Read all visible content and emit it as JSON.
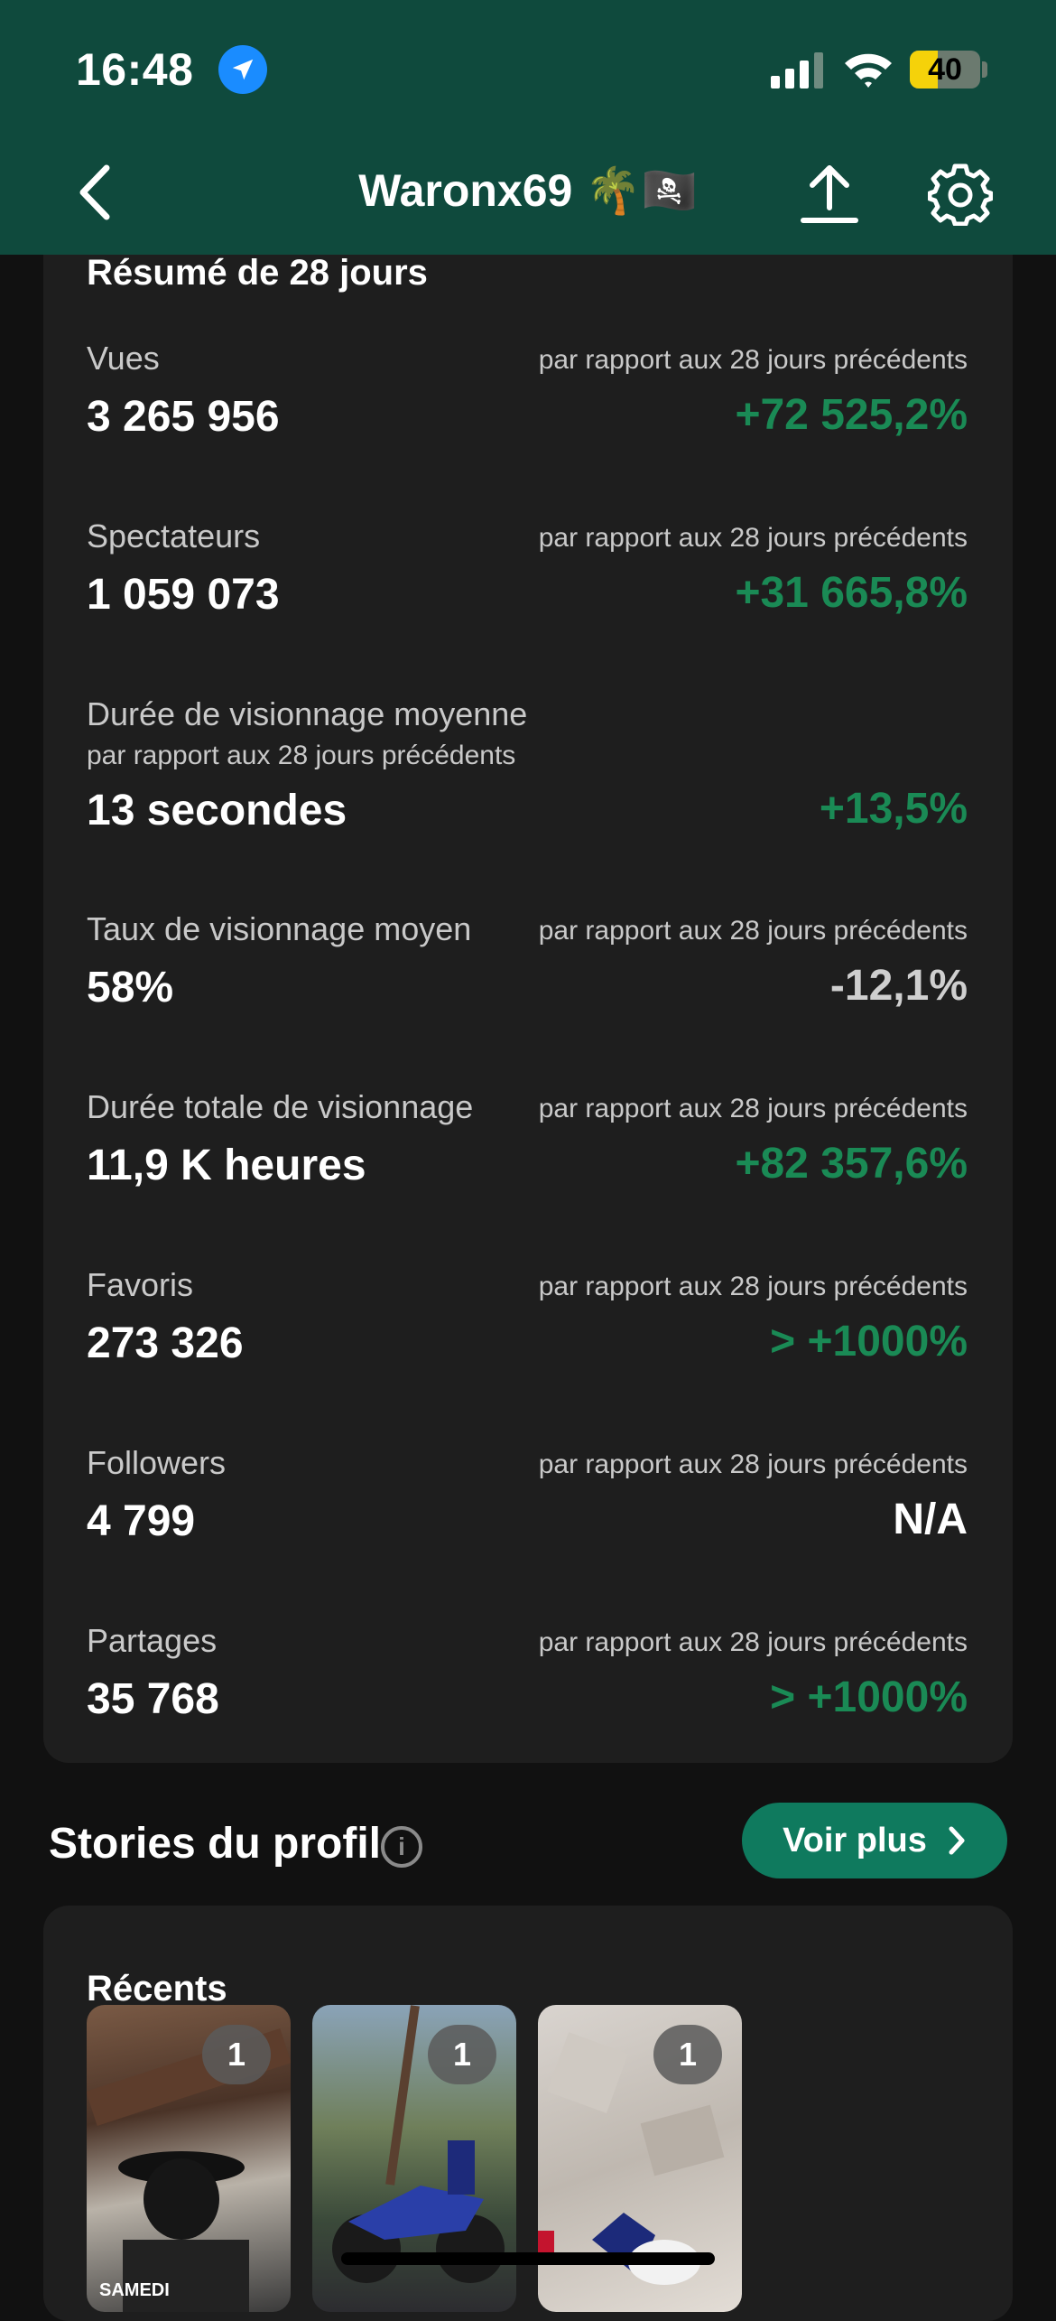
{
  "status_bar": {
    "time": "16:48",
    "battery": "40",
    "battery_level": 0.4
  },
  "header": {
    "title": "Waronx69 🌴🏴‍☠️"
  },
  "summary": {
    "title": "Résumé de 28 jours",
    "metrics": [
      {
        "label": "Vues",
        "value": "3 265 956",
        "compare": "par rapport aux 28 jours précédents",
        "change": "+72 525,2%",
        "trend": "positive"
      },
      {
        "label": "Spectateurs",
        "value": "1 059 073",
        "compare": "par rapport aux 28 jours précédents",
        "change": "+31 665,8%",
        "trend": "positive"
      },
      {
        "label": "Durée de visionnage moyenne",
        "value": "13 secondes",
        "compare": "par rapport aux 28 jours précédents",
        "change": "+13,5%",
        "trend": "positive"
      },
      {
        "label": "Taux de visionnage moyen",
        "value": "58%",
        "compare": "par rapport aux 28 jours précédents",
        "change": "-12,1%",
        "trend": "neutral"
      },
      {
        "label": "Durée totale de visionnage",
        "value": "11,9 K heures",
        "compare": "par rapport aux 28 jours précédents",
        "change": "+82 357,6%",
        "trend": "positive"
      },
      {
        "label": "Favoris",
        "value": "273 326",
        "compare": "par rapport aux 28 jours précédents",
        "change": "> +1000%",
        "trend": "positive"
      },
      {
        "label": "Followers",
        "value": "4 799",
        "compare": "par rapport aux 28 jours précédents",
        "change": "N/A",
        "trend": "none"
      },
      {
        "label": "Partages",
        "value": "35 768",
        "compare": "par rapport aux 28 jours précédents",
        "change": "> +1000%",
        "trend": "positive"
      }
    ]
  },
  "stories": {
    "title": "Stories du profil",
    "voir_plus": "Voir plus",
    "recents_title": "Récents",
    "items": [
      {
        "count": "1",
        "caption": "SAMEDI"
      },
      {
        "count": "1"
      },
      {
        "count": "1"
      }
    ]
  },
  "colors": {
    "header": "#0f4a3d",
    "positive": "#1a8a55",
    "button": "#0f7a5e"
  }
}
